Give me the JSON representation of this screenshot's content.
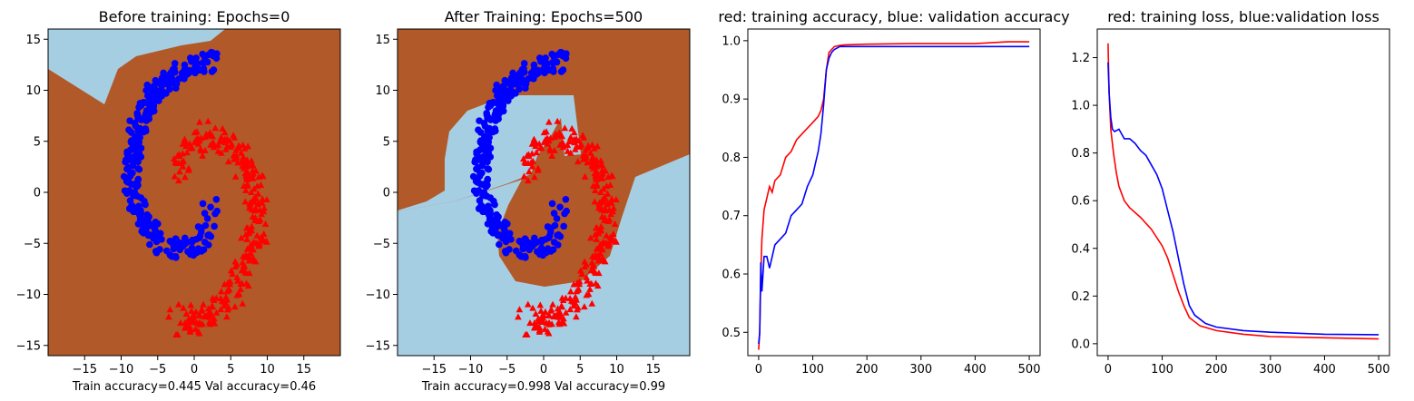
{
  "colors": {
    "region_a": "#a6cee3",
    "region_b": "#b15928",
    "red": "#ff0000",
    "blue": "#0000ff"
  },
  "chart_data": [
    {
      "type": "scatter",
      "title": "Before training: Epochs=0",
      "xlabel": "Train accuracy=0.445 Val accuracy=0.46",
      "xlim": [
        -20,
        20
      ],
      "ylim": [
        -16,
        16
      ],
      "xticks": [
        -15,
        -10,
        -5,
        0,
        5,
        10,
        15
      ],
      "yticks": [
        -15,
        -10,
        -5,
        0,
        5,
        10,
        15
      ],
      "tick_labels_x": [
        "−15",
        "−10",
        "−5",
        "0",
        "5",
        "10",
        "15"
      ],
      "tick_labels_y": [
        "−15",
        "−10",
        "−5",
        "0",
        "5",
        "10",
        "15"
      ],
      "series": [
        {
          "marker": "triangle",
          "color": "#ff0000",
          "spiral": "outer"
        },
        {
          "marker": "circle",
          "color": "#0000ff",
          "spiral": "inner"
        }
      ],
      "background": "mostly brown region, light-blue region in upper-left corner"
    },
    {
      "type": "scatter",
      "title": "After Training: Epochs=500",
      "xlabel": "Train accuracy=0.998 Val accuracy=0.99",
      "xlim": [
        -20,
        20
      ],
      "ylim": [
        -16,
        16
      ],
      "xticks": [
        -15,
        -10,
        -5,
        0,
        5,
        10,
        15
      ],
      "yticks": [
        -15,
        -10,
        -5,
        0,
        5,
        10,
        15
      ],
      "tick_labels_x": [
        "−15",
        "−10",
        "−5",
        "0",
        "5",
        "10",
        "15"
      ],
      "tick_labels_y": [
        "−15",
        "−10",
        "−5",
        "0",
        "5",
        "10",
        "15"
      ],
      "series": [
        {
          "marker": "triangle",
          "color": "#ff0000",
          "spiral": "outer"
        },
        {
          "marker": "circle",
          "color": "#0000ff",
          "spiral": "inner"
        }
      ],
      "background": "decision regions follow the two spirals"
    },
    {
      "type": "line",
      "title": "red: training accuracy, blue: validation accuracy",
      "xlim": [
        -20,
        520
      ],
      "ylim": [
        0.46,
        1.02
      ],
      "xticks": [
        0,
        100,
        200,
        300,
        400,
        500
      ],
      "yticks": [
        0.5,
        0.6,
        0.7,
        0.8,
        0.9,
        1.0
      ],
      "tick_labels_x": [
        "0",
        "100",
        "200",
        "300",
        "400",
        "500"
      ],
      "tick_labels_y": [
        "0.5",
        "0.6",
        "0.7",
        "0.8",
        "0.9",
        "1.0"
      ],
      "series": [
        {
          "color": "#ff0000",
          "x": [
            0,
            2,
            4,
            6,
            10,
            15,
            20,
            25,
            30,
            40,
            50,
            60,
            70,
            80,
            90,
            100,
            110,
            115,
            120,
            125,
            130,
            135,
            140,
            150,
            160,
            200,
            280,
            400,
            460,
            500
          ],
          "y": [
            0.47,
            0.5,
            0.6,
            0.66,
            0.71,
            0.73,
            0.75,
            0.74,
            0.76,
            0.77,
            0.8,
            0.81,
            0.83,
            0.84,
            0.85,
            0.86,
            0.87,
            0.88,
            0.9,
            0.95,
            0.98,
            0.985,
            0.99,
            0.992,
            0.993,
            0.994,
            0.995,
            0.995,
            0.998,
            0.998
          ]
        },
        {
          "color": "#0000ff",
          "x": [
            0,
            2,
            4,
            6,
            8,
            10,
            15,
            20,
            30,
            40,
            50,
            60,
            70,
            80,
            90,
            100,
            105,
            110,
            115,
            120,
            125,
            130,
            135,
            140,
            150,
            200,
            300,
            500
          ],
          "y": [
            0.48,
            0.5,
            0.62,
            0.57,
            0.6,
            0.63,
            0.63,
            0.61,
            0.65,
            0.66,
            0.67,
            0.7,
            0.71,
            0.72,
            0.75,
            0.77,
            0.79,
            0.81,
            0.84,
            0.89,
            0.95,
            0.97,
            0.98,
            0.985,
            0.99,
            0.99,
            0.99,
            0.99
          ]
        }
      ]
    },
    {
      "type": "line",
      "title": "red: training loss, blue:validation loss",
      "xlim": [
        -20,
        520
      ],
      "ylim": [
        -0.05,
        1.32
      ],
      "xticks": [
        0,
        100,
        200,
        300,
        400,
        500
      ],
      "yticks": [
        0.0,
        0.2,
        0.4,
        0.6,
        0.8,
        1.0,
        1.2
      ],
      "tick_labels_x": [
        "0",
        "100",
        "200",
        "300",
        "400",
        "500"
      ],
      "tick_labels_y": [
        "0.0",
        "0.2",
        "0.4",
        "0.6",
        "0.8",
        "1.0",
        "1.2"
      ],
      "series": [
        {
          "color": "#ff0000",
          "x": [
            0,
            2,
            5,
            10,
            15,
            20,
            30,
            40,
            60,
            80,
            100,
            110,
            120,
            130,
            140,
            150,
            170,
            200,
            250,
            300,
            400,
            500
          ],
          "y": [
            1.26,
            1.05,
            0.9,
            0.8,
            0.72,
            0.66,
            0.6,
            0.57,
            0.53,
            0.48,
            0.41,
            0.36,
            0.29,
            0.22,
            0.16,
            0.11,
            0.075,
            0.055,
            0.04,
            0.03,
            0.025,
            0.02
          ]
        },
        {
          "color": "#0000ff",
          "x": [
            0,
            2,
            5,
            8,
            12,
            20,
            30,
            40,
            50,
            60,
            70,
            80,
            90,
            100,
            110,
            120,
            130,
            140,
            150,
            160,
            180,
            200,
            250,
            300,
            400,
            500
          ],
          "y": [
            1.18,
            1.05,
            0.95,
            0.9,
            0.89,
            0.9,
            0.86,
            0.86,
            0.84,
            0.81,
            0.79,
            0.75,
            0.71,
            0.65,
            0.56,
            0.47,
            0.36,
            0.25,
            0.16,
            0.12,
            0.085,
            0.07,
            0.055,
            0.048,
            0.04,
            0.038
          ]
        }
      ]
    }
  ]
}
